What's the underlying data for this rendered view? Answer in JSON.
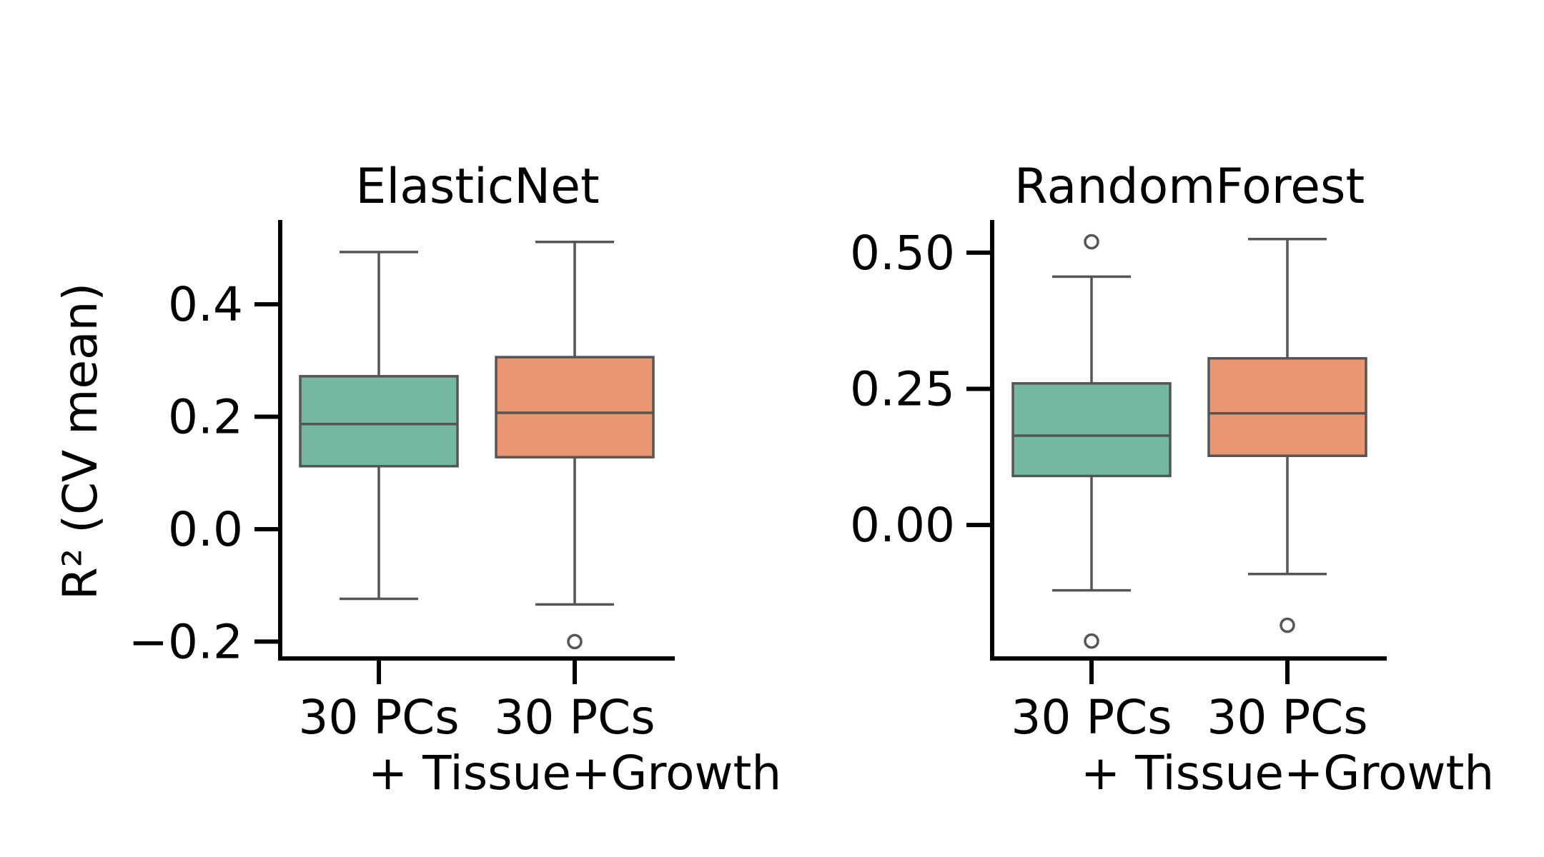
{
  "chart_data": {
    "type": "box",
    "ylabel": "R² (CV mean)",
    "categories": [
      "30 PCs",
      "30 PCs\n+ Tissue+Growth"
    ],
    "colors": [
      "#74b8a1",
      "#ea9673"
    ],
    "grid": false,
    "panels": [
      {
        "title": "ElasticNet",
        "ylim": [
          -0.23,
          0.55
        ],
        "yticks": [
          -0.2,
          0.0,
          0.2,
          0.4
        ],
        "ytick_labels": [
          "−0.2",
          "0.0",
          "0.2",
          "0.4"
        ],
        "boxes": [
          {
            "category": "30 PCs",
            "whisker_low": -0.124,
            "q1": 0.112,
            "median": 0.187,
            "q3": 0.272,
            "whisker_high": 0.493,
            "fliers": []
          },
          {
            "category": "30 PCs\n+ Tissue+Growth",
            "whisker_low": -0.134,
            "q1": 0.128,
            "median": 0.207,
            "q3": 0.306,
            "whisker_high": 0.511,
            "fliers": [
              -0.2
            ]
          }
        ]
      },
      {
        "title": "RandomForest",
        "ylim": [
          -0.245,
          0.56
        ],
        "yticks": [
          0.0,
          0.25,
          0.5
        ],
        "ytick_labels": [
          "0.00",
          "0.25",
          "0.50"
        ],
        "boxes": [
          {
            "category": "30 PCs",
            "whisker_low": -0.12,
            "q1": 0.09,
            "median": 0.164,
            "q3": 0.26,
            "whisker_high": 0.456,
            "fliers": [
              0.52,
              -0.213
            ]
          },
          {
            "category": "30 PCs\n+ Tissue+Growth",
            "whisker_low": -0.09,
            "q1": 0.127,
            "median": 0.205,
            "q3": 0.306,
            "whisker_high": 0.525,
            "fliers": [
              -0.184
            ]
          }
        ]
      }
    ]
  }
}
